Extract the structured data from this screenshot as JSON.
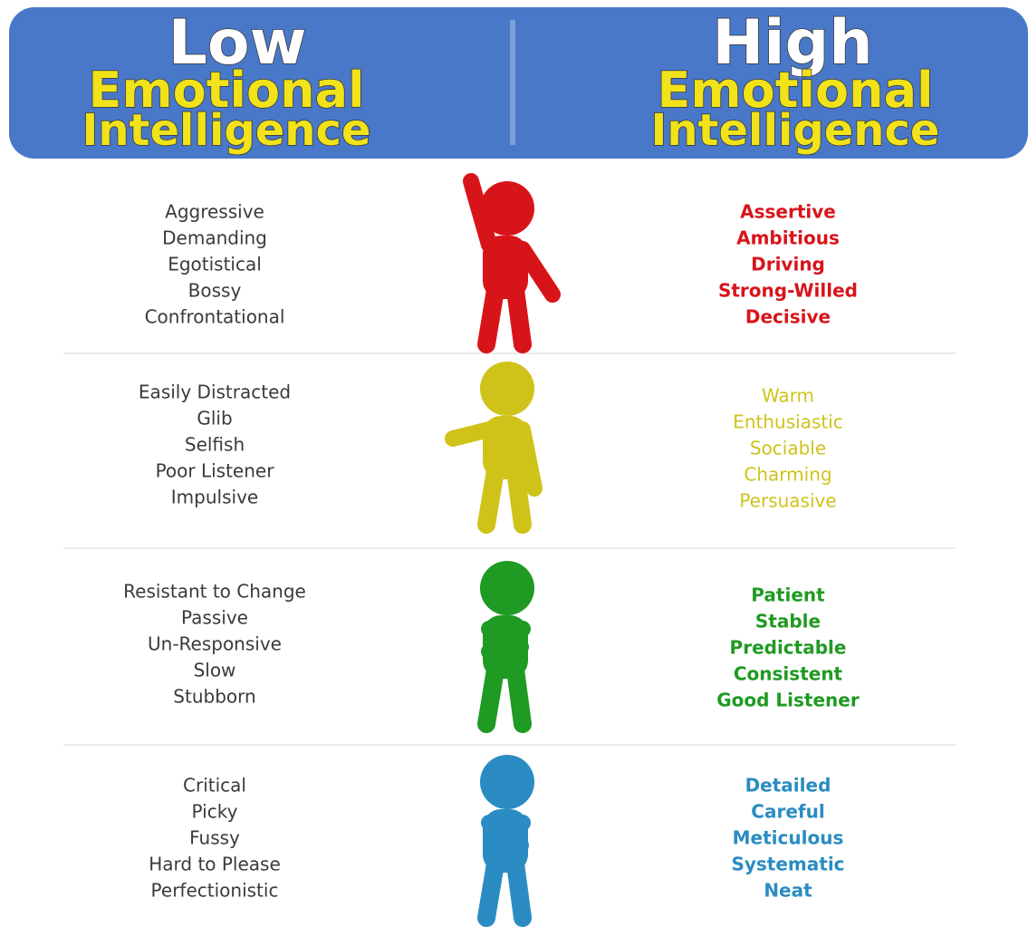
{
  "header": {
    "left": {
      "line1": "Low",
      "line2": "Emotional",
      "line3": "Intelligence"
    },
    "right": {
      "line1": "High",
      "line2": "Emotional",
      "line3": "Intelligence"
    }
  },
  "rows": [
    {
      "color": "#d8141b",
      "low": [
        "Aggressive",
        "Demanding",
        "Egotistical",
        "Bossy",
        "Confrontational"
      ],
      "high": [
        "Assertive",
        "Ambitious",
        "Driving",
        "Strong-Willed",
        "Decisive"
      ]
    },
    {
      "color": "#cfc31a",
      "low": [
        "Easily Distracted",
        "Glib",
        "Selfish",
        "Poor Listener",
        "Impulsive"
      ],
      "high": [
        "Warm",
        "Enthusiastic",
        "Sociable",
        "Charming",
        "Persuasive"
      ]
    },
    {
      "color": "#1f9a22",
      "low": [
        "Resistant to Change",
        "Passive",
        "Un-Responsive",
        "Slow",
        "Stubborn"
      ],
      "high": [
        "Patient",
        "Stable",
        "Predictable",
        "Consistent",
        "Good Listener"
      ]
    },
    {
      "color": "#2a8cc2",
      "low": [
        "Critical",
        "Picky",
        "Fussy",
        "Hard to Please",
        "Perfectionistic"
      ],
      "high": [
        "Detailed",
        "Careful",
        "Meticulous",
        "Systematic",
        "Neat"
      ]
    }
  ]
}
